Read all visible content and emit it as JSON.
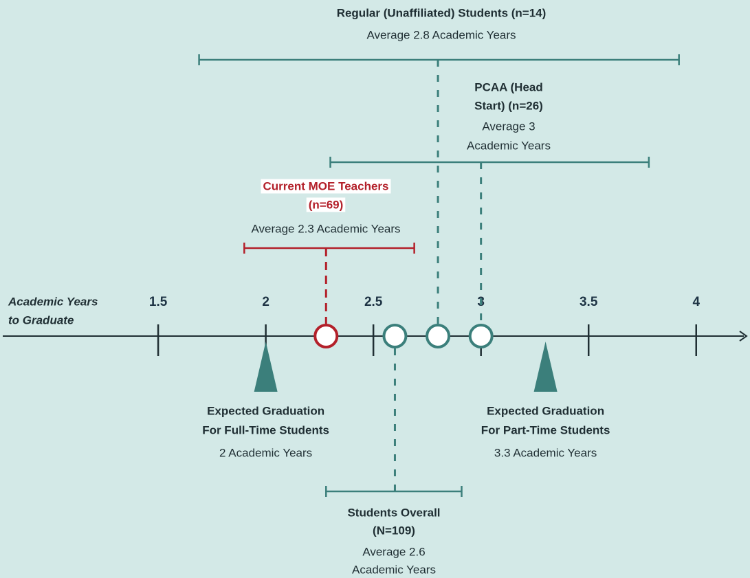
{
  "chart_data": {
    "type": "range",
    "axis_title": [
      "Academic Years",
      "to Graduate"
    ],
    "xlim": [
      0.765,
      4.25
    ],
    "xticks": [
      1.5,
      2,
      2.5,
      3,
      3.5,
      4
    ],
    "groups": [
      {
        "title": [
          "Regular (Unaffiliated) Students (n=14)"
        ],
        "subtitle": [
          "Average 2.8 Academic Years"
        ],
        "mean": 2.8,
        "range": [
          1.69,
          3.92
        ],
        "color": "#3b7f7b"
      },
      {
        "title": [
          "PCAA (Head",
          "Start) (n=26)"
        ],
        "subtitle": [
          "Average 3",
          "Academic Years"
        ],
        "mean": 3,
        "range": [
          2.3,
          3.78
        ],
        "color": "#3b7f7b"
      },
      {
        "title": [
          "Current MOE Teachers",
          "(n=69)"
        ],
        "subtitle": [
          "Average 2.3 Academic Years"
        ],
        "mean": 2.28,
        "range": [
          1.9,
          2.69
        ],
        "color": "#b3202a"
      },
      {
        "title": [
          "Students Overall",
          "(N=109)"
        ],
        "subtitle": [
          "Average 2.6",
          "Academic Years"
        ],
        "mean": 2.6,
        "range": [
          2.28,
          2.91
        ],
        "color": "#3b7f7b"
      }
    ],
    "markers": [
      {
        "title": [
          "Expected Graduation",
          "For Full-Time Students"
        ],
        "subtitle": "2 Academic Years",
        "value": 2,
        "color": "#3b7f7b"
      },
      {
        "title": [
          "Expected Graduation",
          "For Part-Time Students"
        ],
        "subtitle": "3.3 Academic Years",
        "value": 3.3,
        "color": "#3b7f7b"
      }
    ]
  }
}
